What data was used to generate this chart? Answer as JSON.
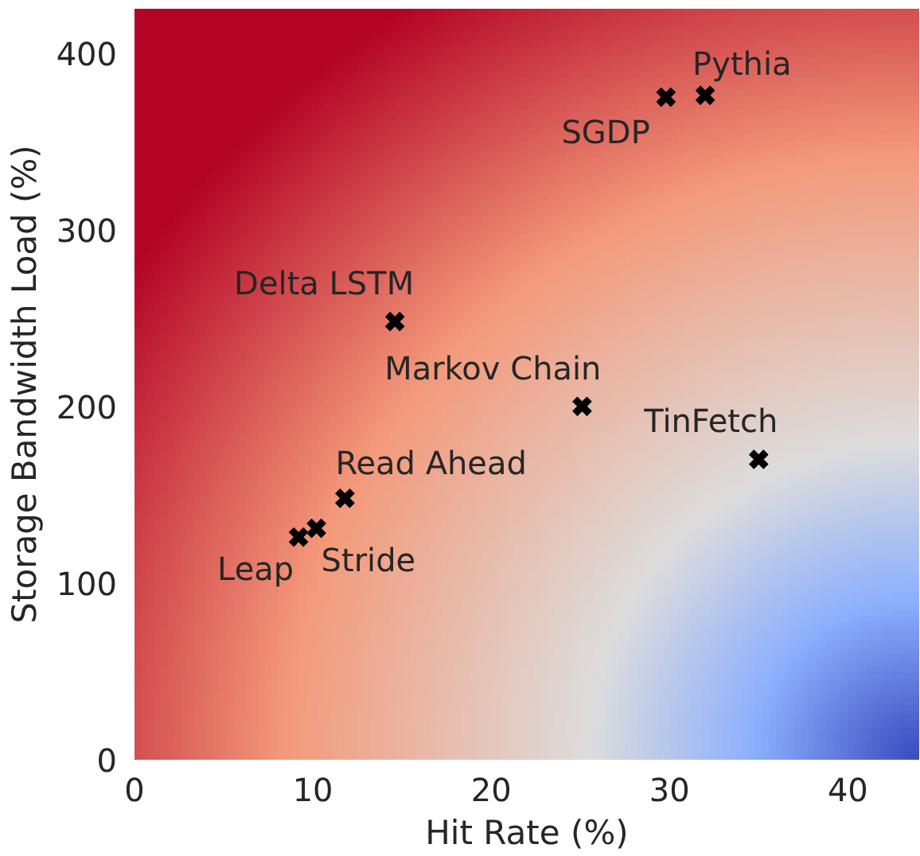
{
  "chart_data": {
    "type": "scatter",
    "xlabel": "Hit Rate (%)",
    "ylabel": "Storage Bandwidth Load (%)",
    "x": [
      32.0,
      29.8,
      14.6,
      25.1,
      35.0,
      11.8,
      10.2,
      9.2
    ],
    "values": [
      376,
      375,
      248,
      200,
      170,
      148,
      131,
      126
    ],
    "color": "#000000",
    "marker": "cross",
    "xlim": [
      0,
      44
    ],
    "ylim": [
      0,
      425
    ],
    "xticks": [
      0,
      10,
      20,
      30,
      40
    ],
    "yticks": [
      0,
      100,
      200,
      300,
      400
    ],
    "annotations": [
      {
        "text": "Pythia",
        "x": 32.0,
        "y": 376
      },
      {
        "text": "SGDP",
        "x": 29.8,
        "y": 375
      },
      {
        "text": "Delta LSTM",
        "x": 14.6,
        "y": 248
      },
      {
        "text": "Markov Chain",
        "x": 25.1,
        "y": 200
      },
      {
        "text": "TinFetch",
        "x": 35.0,
        "y": 170
      },
      {
        "text": "Read Ahead",
        "x": 11.8,
        "y": 148
      },
      {
        "text": "Stride",
        "x": 10.2,
        "y": 131
      },
      {
        "text": "Leap",
        "x": 9.2,
        "y": 126
      }
    ]
  }
}
